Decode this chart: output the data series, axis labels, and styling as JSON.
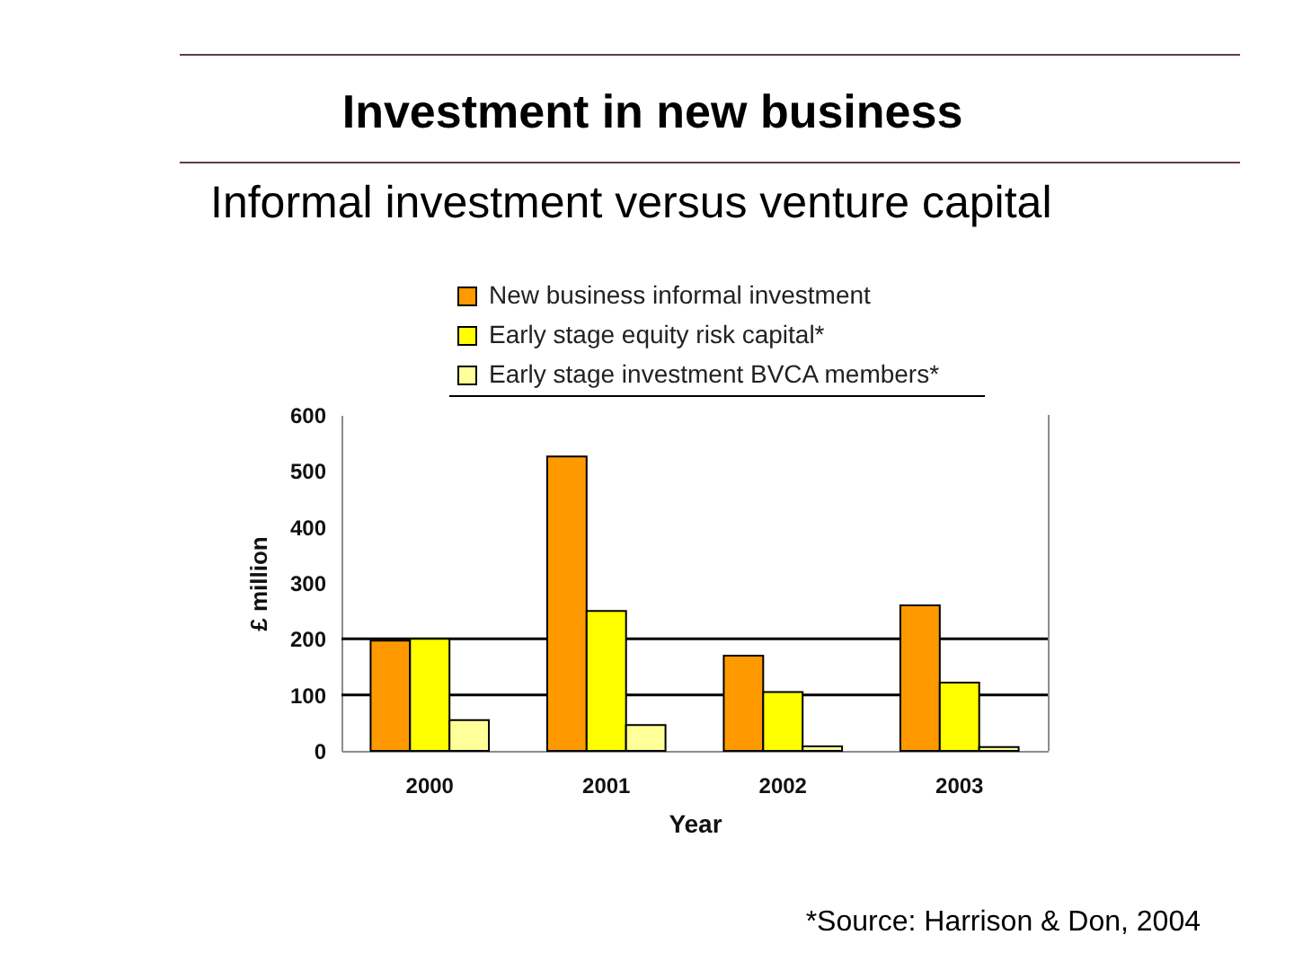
{
  "chart_data": {
    "type": "bar",
    "title": "Investment in new business",
    "subtitle": "Informal investment versus venture capital",
    "xlabel": "Year",
    "ylabel": "£ million",
    "annotations": [
      "*Source: Harrison & Don, 2004"
    ],
    "categories": [
      "2000",
      "2001",
      "2002",
      "2003"
    ],
    "series": [
      {
        "name": "New business informal investment",
        "color": "#ff9900",
        "values": [
          197,
          526,
          170,
          260
        ]
      },
      {
        "name": "Early stage equity risk capital*",
        "color": "#ffff00",
        "values": [
          200,
          250,
          105,
          122
        ]
      },
      {
        "name": "Early stage investment BVCA members*",
        "color": "#ffff99",
        "values": [
          55,
          46,
          8,
          7
        ]
      }
    ],
    "ylim": [
      0,
      600
    ],
    "yticks": [
      0,
      100,
      200,
      300,
      400,
      500,
      600
    ],
    "ref_lines": [
      {
        "axis": "y",
        "value": 100,
        "color": "#000000"
      },
      {
        "axis": "y",
        "value": 200,
        "color": "#000000"
      }
    ],
    "legend": "top"
  }
}
